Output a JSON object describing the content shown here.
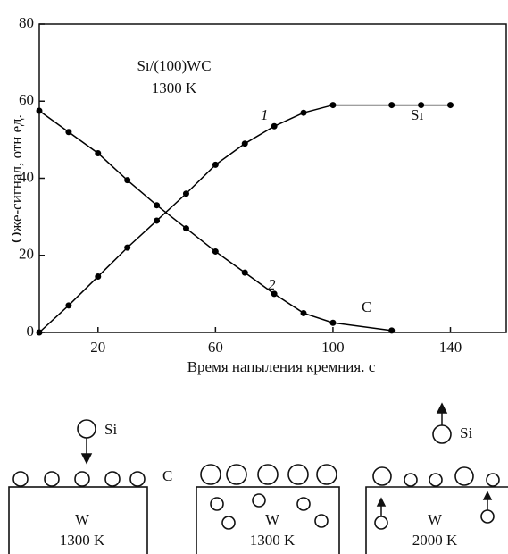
{
  "chart_data": {
    "type": "line",
    "xlabel": "Время напыления кремния. с",
    "ylabel": "Оже-сигнал, отн ед.",
    "x": [
      0,
      10,
      20,
      30,
      40,
      50,
      60,
      70,
      80,
      90,
      100,
      120,
      130,
      140
    ],
    "series": [
      {
        "name": "1",
        "color": "#000000",
        "values": [
          0,
          7,
          14.5,
          22,
          29,
          36,
          43.5,
          49,
          53.5,
          57,
          59,
          59,
          59,
          59
        ]
      },
      {
        "name": "2",
        "color": "#000000",
        "values": [
          57.5,
          52,
          46.5,
          39.5,
          33,
          27,
          21,
          15.5,
          10,
          5,
          2.5,
          0.5,
          null,
          null
        ]
      }
    ],
    "xlim": [
      0,
      159
    ],
    "xticks": [
      20,
      60,
      100,
      140
    ],
    "ylim": [
      0,
      80
    ],
    "yticks": [
      0,
      20,
      40,
      60,
      80
    ],
    "annotations": [
      "Sı/(100)WC",
      "1300 K",
      "Sı",
      "C"
    ]
  },
  "diagram": {
    "adatom": "Si",
    "surface": "C",
    "panels": [
      {
        "substrate": "W",
        "temperature": "1300 K"
      },
      {
        "substrate": "W",
        "temperature": "1300 K"
      },
      {
        "substrate": "W",
        "temperature": "2000 K"
      }
    ]
  }
}
